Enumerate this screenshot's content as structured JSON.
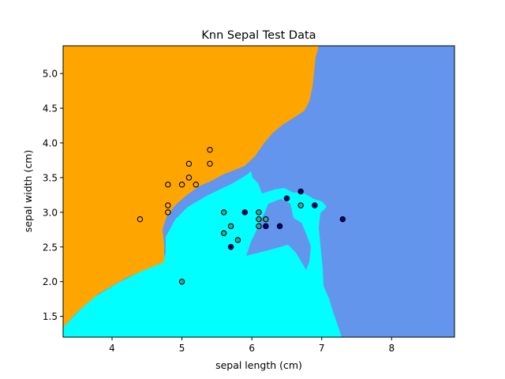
{
  "chart_data": {
    "type": "scatter",
    "title": "Knn Sepal Test Data",
    "xlabel": "sepal length (cm)",
    "ylabel": "sepal width (cm)",
    "xlim": [
      3.3,
      8.9
    ],
    "ylim": [
      1.2,
      5.4
    ],
    "xticks": [
      4,
      5,
      6,
      7,
      8
    ],
    "yticks": [
      1.5,
      2.0,
      2.5,
      3.0,
      3.5,
      4.0,
      4.5,
      5.0
    ],
    "grid": false,
    "legend": "none",
    "background_regions": [
      {
        "class": "setosa region",
        "color": "#ffa500"
      },
      {
        "class": "versicolor region",
        "color": "#00ffff"
      },
      {
        "class": "virginica region",
        "color": "#6495ed"
      }
    ],
    "series": [
      {
        "color": "#ffa500",
        "points": [
          {
            "x": 4.4,
            "y": 2.9
          },
          {
            "x": 4.8,
            "y": 3.0
          },
          {
            "x": 4.8,
            "y": 3.1
          },
          {
            "x": 4.8,
            "y": 3.4
          },
          {
            "x": 5.0,
            "y": 3.4
          },
          {
            "x": 5.1,
            "y": 3.5
          },
          {
            "x": 5.1,
            "y": 3.7
          },
          {
            "x": 5.2,
            "y": 3.4
          },
          {
            "x": 5.4,
            "y": 3.7
          },
          {
            "x": 5.4,
            "y": 3.9
          }
        ]
      },
      {
        "color": "#20b2aa",
        "points": [
          {
            "x": 5.0,
            "y": 2.0
          },
          {
            "x": 5.6,
            "y": 3.0
          },
          {
            "x": 5.6,
            "y": 2.7
          },
          {
            "x": 5.7,
            "y": 2.8
          },
          {
            "x": 5.8,
            "y": 2.6
          },
          {
            "x": 6.1,
            "y": 3.0
          },
          {
            "x": 6.1,
            "y": 2.9
          },
          {
            "x": 6.1,
            "y": 2.8
          },
          {
            "x": 6.2,
            "y": 2.9
          },
          {
            "x": 6.7,
            "y": 3.1
          }
        ]
      },
      {
        "color": "#000080",
        "points": [
          {
            "x": 5.7,
            "y": 2.5
          },
          {
            "x": 5.9,
            "y": 3.0
          },
          {
            "x": 6.2,
            "y": 2.8
          },
          {
            "x": 6.4,
            "y": 2.8
          },
          {
            "x": 6.5,
            "y": 3.2
          },
          {
            "x": 6.7,
            "y": 3.3
          },
          {
            "x": 6.9,
            "y": 3.1
          },
          {
            "x": 7.3,
            "y": 2.9
          }
        ]
      }
    ]
  }
}
